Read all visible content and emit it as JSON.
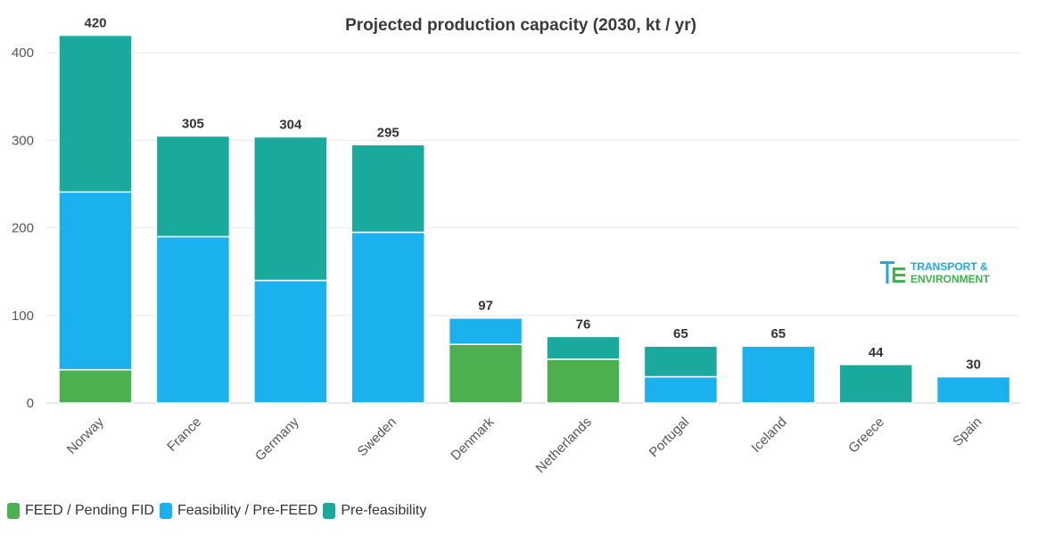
{
  "chart_data": {
    "type": "bar",
    "stacked": true,
    "title": "Projected production capacity (2030, kt / yr)",
    "categories": [
      "Norway",
      "France",
      "Germany",
      "Sweden",
      "Denmark",
      "Netherlands",
      "Portugal",
      "Iceland",
      "Greece",
      "Spain"
    ],
    "series": [
      {
        "name": "FEED / Pending FID",
        "color": "#4caf50",
        "values": [
          38,
          0,
          0,
          0,
          67,
          50,
          0,
          0,
          0,
          0
        ]
      },
      {
        "name": "Feasibility / Pre-FEED",
        "color": "#1ab1ee",
        "values": [
          203,
          190,
          140,
          195,
          30,
          0,
          30,
          65,
          0,
          30
        ]
      },
      {
        "name": "Pre-feasibility",
        "color": "#1aa99d",
        "values": [
          179,
          115,
          164,
          100,
          0,
          26,
          35,
          0,
          44,
          0
        ]
      }
    ],
    "totals": [
      "420",
      "305",
      "304",
      "295",
      "97",
      "76",
      "65",
      "65",
      "44",
      "30"
    ],
    "y_ticks": [
      "0",
      "100",
      "200",
      "300",
      "400"
    ],
    "ylim": [
      0,
      440
    ],
    "grid": true,
    "legend_position": "bottom-left"
  },
  "brand": {
    "line1": "TRANSPORT &",
    "line2": "ENVIRONMENT",
    "colors": {
      "blue": "#1aa9e8",
      "green": "#3bb54a"
    }
  }
}
